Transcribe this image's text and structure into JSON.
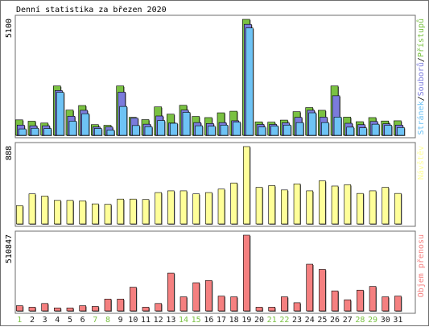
{
  "title": "Denní statistika za březen 2020",
  "colors": {
    "hits": "#7ac142",
    "files": "#7b7bdc",
    "pages": "#6ec3f5",
    "visits": "#ffff99",
    "volume": "#f58080",
    "panel_border": "#6e6e6e",
    "weekend_label": "#7ac142",
    "weekday_label": "#1a1a1a"
  },
  "chart_data": [
    {
      "type": "bar",
      "panel": "requests",
      "ymax_label": "5100",
      "ylim": [
        0,
        5100
      ],
      "legend": [
        {
          "name": "Přístupů",
          "color": "#7ac142"
        },
        {
          "name": "Souborů",
          "color": "#7b7bdc"
        },
        {
          "name": "Stránek",
          "color": "#6ec3f5"
        }
      ],
      "categories": [
        "1",
        "2",
        "3",
        "4",
        "5",
        "6",
        "7",
        "8",
        "9",
        "10",
        "11",
        "12",
        "13",
        "14",
        "15",
        "16",
        "17",
        "18",
        "19",
        "20",
        "21",
        "22",
        "23",
        "24",
        "25",
        "26",
        "27",
        "28",
        "29",
        "30",
        "31"
      ],
      "series": [
        {
          "name": "Přístupů",
          "values": [
            680,
            620,
            540,
            2170,
            1110,
            1310,
            470,
            440,
            2170,
            790,
            690,
            1250,
            930,
            1320,
            830,
            780,
            990,
            1060,
            5100,
            590,
            580,
            670,
            1040,
            1220,
            1100,
            2170,
            800,
            600,
            780,
            630,
            640
          ]
        },
        {
          "name": "Souborů",
          "values": [
            450,
            420,
            420,
            1970,
            840,
            1100,
            370,
            370,
            1900,
            760,
            490,
            850,
            540,
            1110,
            560,
            520,
            560,
            640,
            4880,
            480,
            480,
            550,
            790,
            1100,
            800,
            1740,
            530,
            470,
            610,
            510,
            450
          ]
        },
        {
          "name": "Stránek",
          "values": [
            280,
            310,
            300,
            1890,
            620,
            950,
            300,
            230,
            1270,
            430,
            380,
            650,
            530,
            1010,
            420,
            400,
            450,
            580,
            4720,
            370,
            410,
            450,
            560,
            990,
            560,
            800,
            360,
            330,
            490,
            440,
            340
          ]
        }
      ]
    },
    {
      "type": "bar",
      "panel": "visits",
      "ymax_label": "888",
      "ylim": [
        0,
        888
      ],
      "legend": [
        {
          "name": "Návštěv",
          "color": "#ffff99"
        }
      ],
      "categories": [
        "1",
        "2",
        "3",
        "4",
        "5",
        "6",
        "7",
        "8",
        "9",
        "10",
        "11",
        "12",
        "13",
        "14",
        "15",
        "16",
        "17",
        "18",
        "19",
        "20",
        "21",
        "22",
        "23",
        "24",
        "25",
        "26",
        "27",
        "28",
        "29",
        "30",
        "31"
      ],
      "series": [
        {
          "name": "Návštěv",
          "values": [
            210,
            345,
            320,
            270,
            270,
            265,
            230,
            225,
            285,
            285,
            280,
            360,
            380,
            380,
            345,
            360,
            400,
            470,
            888,
            420,
            440,
            390,
            460,
            380,
            495,
            435,
            450,
            350,
            380,
            420,
            350
          ]
        }
      ]
    },
    {
      "type": "bar",
      "panel": "volume",
      "ymax_label": "510847",
      "ylim": [
        0,
        510847
      ],
      "legend": [
        {
          "name": "Objem přenosu",
          "color": "#f58080"
        }
      ],
      "categories": [
        "1",
        "2",
        "3",
        "4",
        "5",
        "6",
        "7",
        "8",
        "9",
        "10",
        "11",
        "12",
        "13",
        "14",
        "15",
        "16",
        "17",
        "18",
        "19",
        "20",
        "21",
        "22",
        "23",
        "24",
        "25",
        "26",
        "27",
        "28",
        "29",
        "30",
        "31"
      ],
      "series": [
        {
          "name": "Objem přenosu",
          "values": [
            35000,
            25000,
            50000,
            20000,
            20000,
            35000,
            30000,
            80000,
            80000,
            160000,
            25000,
            50000,
            255000,
            95000,
            190000,
            205000,
            100000,
            95000,
            510847,
            25000,
            25000,
            95000,
            55000,
            315000,
            280000,
            135000,
            75000,
            140000,
            165000,
            95000,
            100000
          ]
        }
      ]
    }
  ],
  "x_axis": {
    "labels": [
      "1",
      "2",
      "3",
      "4",
      "5",
      "6",
      "7",
      "8",
      "9",
      "10",
      "11",
      "12",
      "13",
      "14",
      "15",
      "16",
      "17",
      "18",
      "19",
      "20",
      "21",
      "22",
      "23",
      "24",
      "25",
      "26",
      "27",
      "28",
      "29",
      "30",
      "31"
    ],
    "weekend": [
      true,
      false,
      false,
      false,
      false,
      false,
      true,
      true,
      false,
      false,
      false,
      false,
      false,
      true,
      true,
      false,
      false,
      false,
      false,
      false,
      true,
      true,
      false,
      false,
      false,
      false,
      false,
      true,
      true,
      false,
      false
    ]
  }
}
